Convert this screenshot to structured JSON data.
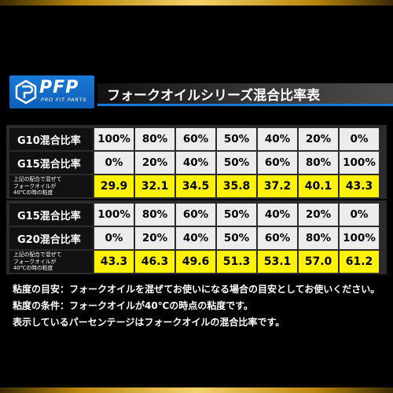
{
  "brand": {
    "logo_text": "PFP",
    "logo_sub": "PRO FIT PARTS",
    "colors": {
      "brand_blue": "#1a7ad8",
      "gold": "#f5d36b",
      "highlight_yellow": "#fff200"
    }
  },
  "title": "フォークオイルシリーズ混合比率表",
  "tables": [
    {
      "rows": [
        {
          "label": "G10混合比率",
          "values": [
            "100%",
            "80%",
            "60%",
            "50%",
            "40%",
            "20%",
            "0%"
          ]
        },
        {
          "label": "G15混合比率",
          "values": [
            "0%",
            "20%",
            "40%",
            "50%",
            "60%",
            "80%",
            "100%"
          ]
        }
      ],
      "viscosity_label": [
        "上記の配合で混ぜて",
        "フォークオイルが",
        "40℃の時の粘度"
      ],
      "viscosity_values": [
        "29.9",
        "32.1",
        "34.5",
        "35.8",
        "37.2",
        "40.1",
        "43.3"
      ]
    },
    {
      "rows": [
        {
          "label": "G15混合比率",
          "values": [
            "100%",
            "80%",
            "60%",
            "50%",
            "40%",
            "20%",
            "0%"
          ]
        },
        {
          "label": "G20混合比率",
          "values": [
            "0%",
            "20%",
            "40%",
            "50%",
            "60%",
            "80%",
            "100%"
          ]
        }
      ],
      "viscosity_label": [
        "上記の配合で混ぜて",
        "フォークオイルが",
        "40℃の時の粘度"
      ],
      "viscosity_values": [
        "43.3",
        "46.3",
        "49.6",
        "51.3",
        "53.1",
        "57.0",
        "61.2"
      ]
    }
  ],
  "notes": [
    "粘度の目安：フォークオイルを混ぜてお使いになる場合の目安としてお使いください。",
    "粘度の条件：フォークオイルが40℃の時点の粘度です。",
    "表示しているパーセンテージはフォークオイルの混合比率です。"
  ]
}
